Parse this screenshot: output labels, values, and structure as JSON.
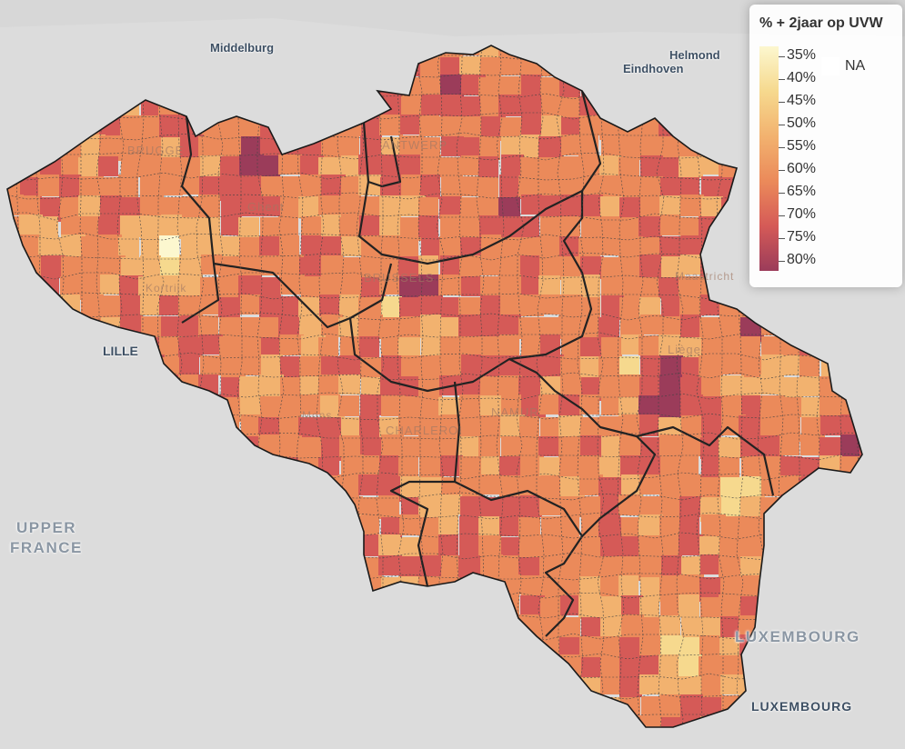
{
  "legend": {
    "title": "% + 2jaar op UVW",
    "ticks": [
      "35%",
      "40%",
      "45%",
      "50%",
      "55%",
      "60%",
      "65%",
      "70%",
      "75%",
      "80%"
    ],
    "na_label": "NA"
  },
  "places": {
    "middelburg": "Middelburg",
    "helmond": "Helmond",
    "eindhoven": "Eindhoven",
    "lille": "LILLE",
    "upper_france_1": "UPPER",
    "upper_france_2": "FRANCE",
    "luxembourg_country": "LUXEMBOURG",
    "luxembourg_city": "LUXEMBOURG",
    "brugge": "BRUGGE",
    "antwerp": "ANTWERP",
    "ghent": "Ghent",
    "kortrijk": "Kortrijk",
    "brussels": "BRUSSELS",
    "maastricht": "Maastricht",
    "liege": "Liège",
    "mons": "Mons",
    "charleroi": "CHARLEROI",
    "namur": "NAMUR"
  },
  "colors": {
    "background": "#dcdcdc",
    "palette": [
      "#fcf7cf",
      "#f6d98e",
      "#f2b26f",
      "#eb8a5a",
      "#d55a57",
      "#9b3c5a"
    ],
    "border": "#222222"
  }
}
